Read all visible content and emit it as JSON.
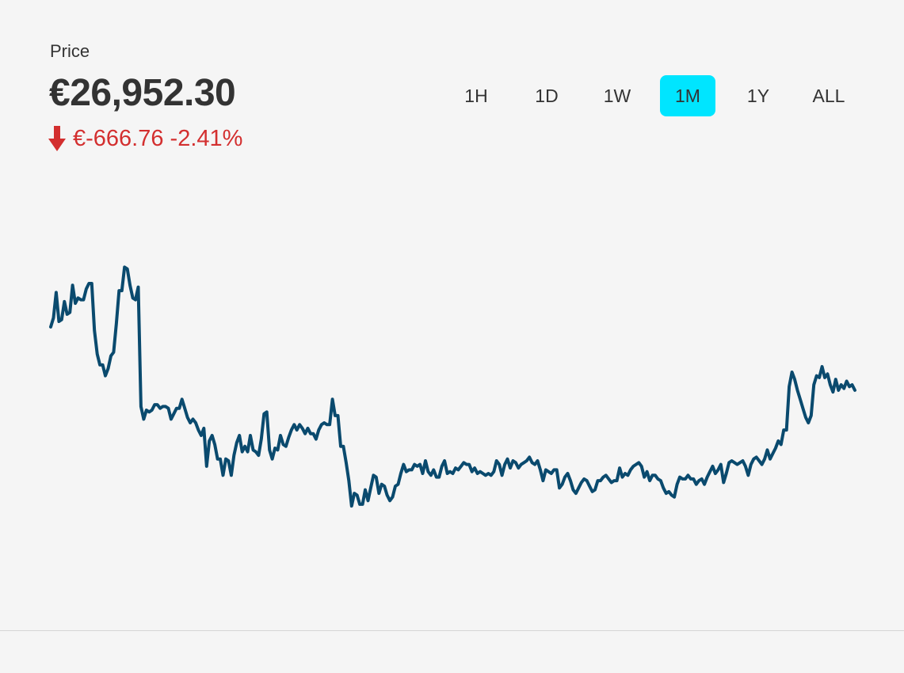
{
  "header": {
    "label": "Price",
    "value": "€26,952.30",
    "change_text": "€-666.76 -2.41%",
    "change_icon": "down-arrow-icon",
    "change_color": "#d32f2f"
  },
  "range_tabs": {
    "items": [
      "1H",
      "1D",
      "1W",
      "1M",
      "1Y",
      "ALL"
    ],
    "selected": "1M",
    "active_color": "#00e5ff"
  },
  "chart_data": {
    "type": "line",
    "title": "",
    "xlabel": "",
    "ylabel": "",
    "grid": false,
    "legend": "none",
    "line_color": "#0a4a6e",
    "note_range": "1M",
    "ylim": [
      26500,
      28950
    ],
    "series": [
      {
        "values": [
          28150,
          28200,
          28340,
          28180,
          28190,
          28290,
          28220,
          28230,
          28380,
          28280,
          28310,
          28300,
          28300,
          28360,
          28390,
          28390,
          28130,
          28000,
          27940,
          27940,
          27880,
          27920,
          27990,
          28010,
          28170,
          28350,
          28350,
          28480,
          28470,
          28380,
          28310,
          28300,
          28370,
          27710,
          27640,
          27690,
          27680,
          27690,
          27720,
          27720,
          27700,
          27710,
          27710,
          27700,
          27640,
          27670,
          27700,
          27700,
          27750,
          27700,
          27650,
          27620,
          27640,
          27620,
          27580,
          27550,
          27590,
          27380,
          27520,
          27550,
          27500,
          27420,
          27420,
          27330,
          27420,
          27410,
          27330,
          27440,
          27510,
          27550,
          27460,
          27490,
          27460,
          27550,
          27470,
          27460,
          27440,
          27530,
          27670,
          27680,
          27470,
          27420,
          27480,
          27470,
          27550,
          27500,
          27490,
          27540,
          27580,
          27610,
          27580,
          27610,
          27590,
          27560,
          27590,
          27560,
          27560,
          27530,
          27580,
          27610,
          27620,
          27610,
          27610,
          27750,
          27660,
          27660,
          27490,
          27490,
          27400,
          27300,
          27160,
          27230,
          27220,
          27170,
          27170,
          27250,
          27190,
          27260,
          27330,
          27320,
          27230,
          27280,
          27270,
          27220,
          27190,
          27210,
          27270,
          27280,
          27340,
          27390,
          27350,
          27360,
          27360,
          27390,
          27380,
          27390,
          27340,
          27410,
          27350,
          27330,
          27360,
          27320,
          27320,
          27380,
          27410,
          27340,
          27350,
          27340,
          27370,
          27360,
          27380,
          27400,
          27390,
          27390,
          27350,
          27370,
          27340,
          27350,
          27340,
          27330,
          27340,
          27330,
          27350,
          27410,
          27390,
          27330,
          27390,
          27420,
          27370,
          27410,
          27400,
          27370,
          27390,
          27400,
          27410,
          27430,
          27400,
          27390,
          27410,
          27360,
          27300,
          27360,
          27350,
          27340,
          27360,
          27360,
          27260,
          27280,
          27320,
          27340,
          27300,
          27250,
          27230,
          27260,
          27290,
          27310,
          27300,
          27270,
          27240,
          27250,
          27300,
          27300,
          27320,
          27330,
          27310,
          27290,
          27300,
          27300,
          27370,
          27320,
          27340,
          27330,
          27360,
          27380,
          27390,
          27400,
          27380,
          27320,
          27350,
          27300,
          27330,
          27330,
          27310,
          27300,
          27260,
          27230,
          27240,
          27220,
          27210,
          27280,
          27320,
          27310,
          27310,
          27330,
          27310,
          27310,
          27280,
          27300,
          27310,
          27280,
          27320,
          27350,
          27380,
          27340,
          27360,
          27390,
          27290,
          27340,
          27400,
          27410,
          27400,
          27390,
          27400,
          27410,
          27380,
          27330,
          27390,
          27420,
          27430,
          27410,
          27390,
          27420,
          27470,
          27420,
          27450,
          27480,
          27520,
          27500,
          27580,
          27580,
          27820,
          27900,
          27860,
          27800,
          27750,
          27700,
          27650,
          27620,
          27660,
          27830,
          27880,
          27870,
          27930,
          27870,
          27890,
          27830,
          27790,
          27860,
          27800,
          27830,
          27810,
          27850,
          27820,
          27830,
          27800
        ]
      }
    ]
  }
}
